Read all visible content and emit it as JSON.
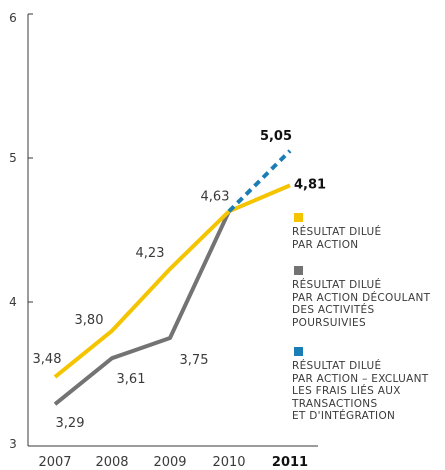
{
  "chart_data": {
    "type": "line",
    "x": [
      "2007",
      "2008",
      "2009",
      "2010",
      "2011"
    ],
    "highlight_x": "2011",
    "ylim": [
      3,
      6
    ],
    "yticks": [
      "3",
      "4",
      "5",
      "6"
    ],
    "grid": false,
    "series": [
      {
        "name": "RÉSULTAT DILUÉ PAR ACTION",
        "color": "#F5C400",
        "style": "solid",
        "values": [
          3.48,
          3.8,
          4.23,
          4.63,
          4.81
        ],
        "labels": [
          "3,48",
          "3,80",
          "4,23",
          "4,63",
          "4,81"
        ]
      },
      {
        "name": "RÉSULTAT DILUÉ PAR ACTION DÉCOULANT DES ACTIVITÉS POURSUIVIES",
        "color": "#737373",
        "style": "solid",
        "values": [
          3.29,
          3.61,
          3.75,
          4.63,
          null
        ],
        "labels": [
          "3,29",
          "3,61",
          "3,75",
          "",
          ""
        ]
      },
      {
        "name": "RÉSULTAT DILUÉ PAR ACTION – EXCLUANT LES FRAIS LIÉS AUX TRANSACTIONS ET D'INTÉGRATION",
        "color": "#1A7DB5",
        "style": "dashed",
        "values": [
          null,
          null,
          null,
          4.63,
          5.05
        ],
        "labels": [
          "",
          "",
          "",
          "",
          "5,05"
        ]
      }
    ],
    "legend": [
      {
        "color": "#F5C400",
        "text": "RÉSULTAT DILUÉ\nPAR ACTION"
      },
      {
        "color": "#737373",
        "text": "RÉSULTAT DILUÉ\nPAR ACTION DÉCOULANT\nDES ACTIVITÉS\nPOURSUIVIES"
      },
      {
        "color": "#1A7DB5",
        "text": "RÉSULTAT DILUÉ\nPAR ACTION – EXCLUANT\nLES FRAIS LIÉS AUX\nTRANSACTIONS\nET D'INTÉGRATION"
      }
    ],
    "legend_position": "right"
  }
}
